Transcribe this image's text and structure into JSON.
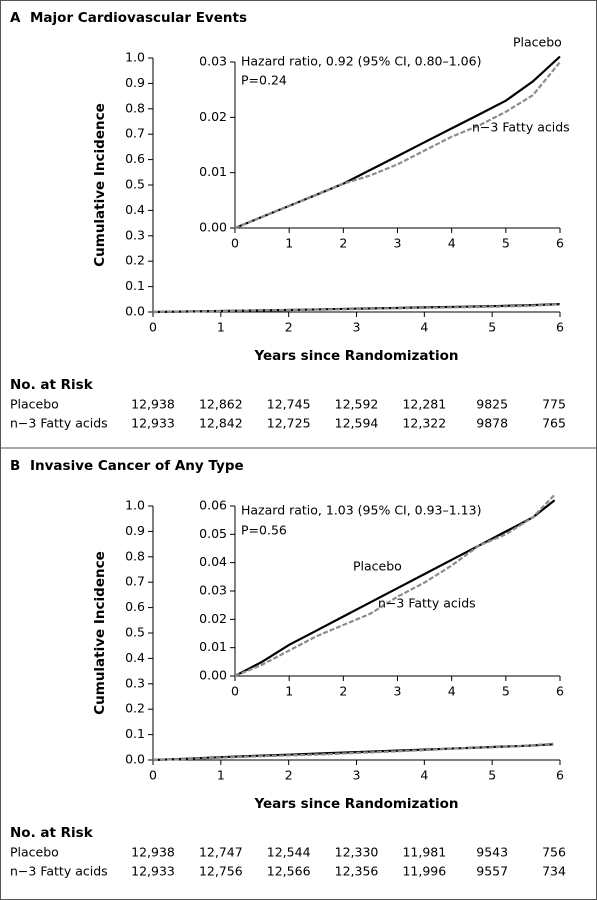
{
  "chart_data": [
    {
      "type": "line",
      "label": "A",
      "title": "Major Cardiovascular Events",
      "x_label": "Years since Randomization",
      "y_label": "Cumulative Incidence",
      "xlim": [
        0,
        6
      ],
      "xticks": [
        0,
        1,
        2,
        3,
        4,
        5,
        6
      ],
      "ylim": [
        0,
        1
      ],
      "yticks": [
        {
          "value": 0,
          "label": "0.0"
        },
        0.1,
        0.2,
        0.3,
        0.4,
        0.5,
        0.6,
        0.7,
        0.8,
        0.9,
        {
          "value": 1,
          "label": "1.0"
        }
      ],
      "x": [
        0,
        0.5,
        1,
        1.5,
        2,
        2.5,
        3,
        3.5,
        4,
        4.5,
        5,
        5.5,
        6
      ],
      "series": [
        {
          "name": "Placebo",
          "color": "#000000",
          "dash": false,
          "values": [
            0,
            0.002,
            0.004,
            0.006,
            0.008,
            0.0105,
            0.013,
            0.0155,
            0.018,
            0.0205,
            0.023,
            0.0265,
            0.031
          ]
        },
        {
          "name": "n−3 Fatty acids",
          "color": "#8c8c8c",
          "dash": true,
          "values": [
            0,
            0.002,
            0.004,
            0.006,
            0.008,
            0.0095,
            0.0115,
            0.014,
            0.0165,
            0.0185,
            0.021,
            0.024,
            0.03
          ]
        }
      ]
    },
    {
      "type": "line",
      "xlim": [
        0,
        6
      ],
      "xticks": [
        0,
        1,
        2,
        3,
        4,
        5,
        6
      ],
      "ylim": [
        0,
        0.03
      ],
      "yticks": [
        {
          "value": 0,
          "label": "0.00"
        },
        {
          "value": 0.01,
          "label": "0.01"
        },
        {
          "value": 0.02,
          "label": "0.02"
        },
        {
          "value": 0.03,
          "label": "0.03"
        }
      ],
      "x": [
        0,
        0.5,
        1,
        1.5,
        2,
        2.5,
        3,
        3.5,
        4,
        4.5,
        5,
        5.5,
        6
      ],
      "series": [
        {
          "name": "Placebo",
          "color": "#000000",
          "dash": false,
          "values": [
            0,
            0.002,
            0.004,
            0.006,
            0.008,
            0.0105,
            0.013,
            0.0155,
            0.018,
            0.0205,
            0.023,
            0.0265,
            0.031
          ]
        },
        {
          "name": "n−3 Fatty acids",
          "color": "#8c8c8c",
          "dash": true,
          "values": [
            0,
            0.002,
            0.004,
            0.006,
            0.008,
            0.0095,
            0.0115,
            0.014,
            0.0165,
            0.0185,
            0.021,
            0.024,
            0.03
          ]
        }
      ],
      "annotations": [
        "Hazard ratio, 0.92 (95% CI, 0.80–1.06)",
        "P=0.24"
      ]
    },
    {
      "type": "line",
      "label": "B",
      "title": "Invasive Cancer of Any Type",
      "x_label": "Years since Randomization",
      "y_label": "Cumulative Incidence",
      "xlim": [
        0,
        6
      ],
      "xticks": [
        0,
        1,
        2,
        3,
        4,
        5,
        6
      ],
      "ylim": [
        0,
        1
      ],
      "yticks": [
        {
          "value": 0,
          "label": "0.0"
        },
        0.1,
        0.2,
        0.3,
        0.4,
        0.5,
        0.6,
        0.7,
        0.8,
        0.9,
        {
          "value": 1,
          "label": "1.0"
        }
      ],
      "x": [
        0,
        0.5,
        1,
        1.5,
        2,
        2.5,
        3,
        3.5,
        4,
        4.5,
        5,
        5.5,
        5.9
      ],
      "series": [
        {
          "name": "Placebo",
          "color": "#000000",
          "dash": false,
          "values": [
            0,
            0.005,
            0.011,
            0.016,
            0.021,
            0.026,
            0.031,
            0.036,
            0.041,
            0.046,
            0.051,
            0.056,
            0.062
          ]
        },
        {
          "name": "n−3 Fatty acids",
          "color": "#8c8c8c",
          "dash": true,
          "values": [
            0,
            0.004,
            0.009,
            0.014,
            0.018,
            0.022,
            0.028,
            0.033,
            0.039,
            0.046,
            0.05,
            0.056,
            0.064
          ]
        }
      ]
    },
    {
      "type": "line",
      "xlim": [
        0,
        6
      ],
      "xticks": [
        0,
        1,
        2,
        3,
        4,
        5,
        6
      ],
      "ylim": [
        0,
        0.06
      ],
      "yticks": [
        {
          "value": 0,
          "label": "0.00"
        },
        {
          "value": 0.01,
          "label": "0.01"
        },
        {
          "value": 0.02,
          "label": "0.02"
        },
        {
          "value": 0.03,
          "label": "0.03"
        },
        {
          "value": 0.04,
          "label": "0.04"
        },
        {
          "value": 0.05,
          "label": "0.05"
        },
        {
          "value": 0.06,
          "label": "0.06"
        }
      ],
      "x": [
        0,
        0.5,
        1,
        1.5,
        2,
        2.5,
        3,
        3.5,
        4,
        4.5,
        5,
        5.5,
        5.9
      ],
      "series": [
        {
          "name": "Placebo",
          "color": "#000000",
          "dash": false,
          "values": [
            0,
            0.005,
            0.011,
            0.016,
            0.021,
            0.026,
            0.031,
            0.036,
            0.041,
            0.046,
            0.051,
            0.056,
            0.062
          ]
        },
        {
          "name": "n−3 Fatty acids",
          "color": "#8c8c8c",
          "dash": true,
          "values": [
            0,
            0.004,
            0.009,
            0.014,
            0.018,
            0.022,
            0.028,
            0.033,
            0.039,
            0.046,
            0.05,
            0.056,
            0.064
          ]
        }
      ],
      "annotations": [
        "Hazard ratio, 1.03 (95% CI, 0.93–1.13)",
        "P=0.56"
      ]
    }
  ],
  "risk_tables": [
    {
      "title": "No. at Risk",
      "rows": [
        {
          "name": "Placebo",
          "values": [
            "12,938",
            "12,862",
            "12,745",
            "12,592",
            "12,281",
            "9825",
            "775"
          ]
        },
        {
          "name": "n−3 Fatty acids",
          "values": [
            "12,933",
            "12,842",
            "12,725",
            "12,594",
            "12,322",
            "9878",
            "765"
          ]
        }
      ]
    },
    {
      "title": "No. at Risk",
      "rows": [
        {
          "name": "Placebo",
          "values": [
            "12,938",
            "12,747",
            "12,544",
            "12,330",
            "11,981",
            "9543",
            "756"
          ]
        },
        {
          "name": "n−3 Fatty acids",
          "values": [
            "12,933",
            "12,756",
            "12,566",
            "12,356",
            "11,996",
            "9557",
            "734"
          ]
        }
      ]
    }
  ]
}
